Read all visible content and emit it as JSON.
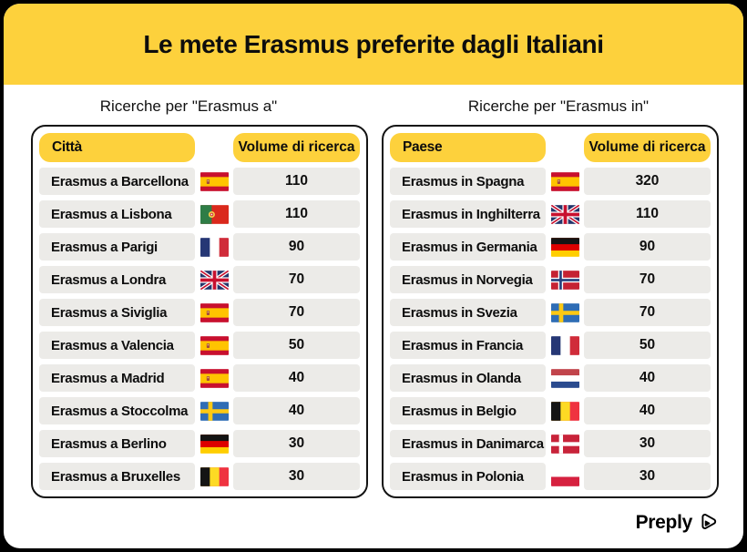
{
  "colors": {
    "yellow": "#FDD13C",
    "row_bg": "#ECEBE8",
    "text": "#0D0D0D",
    "card_border": "#131313",
    "background": "#000000",
    "surface": "#FFFFFF"
  },
  "header": {
    "title": "Le mete Erasmus preferite dagli Italiani"
  },
  "tables": [
    {
      "subtitle": "Ricerche per \"Erasmus a\"",
      "col1": "Città",
      "col2": "Volume di ricerca",
      "rows": [
        {
          "label": "Erasmus a Barcellona",
          "flag": "es",
          "value": "110"
        },
        {
          "label": "Erasmus a Lisbona",
          "flag": "pt",
          "value": "110"
        },
        {
          "label": "Erasmus a Parigi",
          "flag": "fr",
          "value": "90"
        },
        {
          "label": "Erasmus a Londra",
          "flag": "gb",
          "value": "70"
        },
        {
          "label": "Erasmus a Siviglia",
          "flag": "es",
          "value": "70"
        },
        {
          "label": "Erasmus a Valencia",
          "flag": "es",
          "value": "50"
        },
        {
          "label": "Erasmus a Madrid",
          "flag": "es",
          "value": "40"
        },
        {
          "label": "Erasmus a Stoccolma",
          "flag": "se",
          "value": "40"
        },
        {
          "label": "Erasmus a Berlino",
          "flag": "de",
          "value": "30"
        },
        {
          "label": "Erasmus a Bruxelles",
          "flag": "be",
          "value": "30"
        }
      ]
    },
    {
      "subtitle": "Ricerche per \"Erasmus in\"",
      "col1": "Paese",
      "col2": "Volume di ricerca",
      "rows": [
        {
          "label": "Erasmus in Spagna",
          "flag": "es",
          "value": "320"
        },
        {
          "label": "Erasmus in Inghilterra",
          "flag": "gb",
          "value": "110"
        },
        {
          "label": "Erasmus in Germania",
          "flag": "de",
          "value": "90"
        },
        {
          "label": "Erasmus in Norvegia",
          "flag": "no",
          "value": "70"
        },
        {
          "label": "Erasmus in Svezia",
          "flag": "se",
          "value": "70"
        },
        {
          "label": "Erasmus in Francia",
          "flag": "fr",
          "value": "50"
        },
        {
          "label": "Erasmus in Olanda",
          "flag": "nl",
          "value": "40"
        },
        {
          "label": "Erasmus in Belgio",
          "flag": "be",
          "value": "40"
        },
        {
          "label": "Erasmus in Danimarca",
          "flag": "dk",
          "value": "30"
        },
        {
          "label": "Erasmus in Polonia",
          "flag": "pl",
          "value": "30"
        }
      ]
    }
  ],
  "footer": {
    "brand": "Preply"
  },
  "chart_data": [
    {
      "type": "table",
      "title": "Ricerche per \"Erasmus a\"",
      "columns": [
        "Città",
        "Volume di ricerca"
      ],
      "categories": [
        "Erasmus a Barcellona",
        "Erasmus a Lisbona",
        "Erasmus a Parigi",
        "Erasmus a Londra",
        "Erasmus a Siviglia",
        "Erasmus a Valencia",
        "Erasmus a Madrid",
        "Erasmus a Stoccolma",
        "Erasmus a Berlino",
        "Erasmus a Bruxelles"
      ],
      "values": [
        110,
        110,
        90,
        70,
        70,
        50,
        40,
        40,
        30,
        30
      ],
      "flags": [
        "Spain",
        "Portugal",
        "France",
        "United Kingdom",
        "Spain",
        "Spain",
        "Spain",
        "Sweden",
        "Germany",
        "Belgium"
      ]
    },
    {
      "type": "table",
      "title": "Ricerche per \"Erasmus in\"",
      "columns": [
        "Paese",
        "Volume di ricerca"
      ],
      "categories": [
        "Erasmus in Spagna",
        "Erasmus in Inghilterra",
        "Erasmus in Germania",
        "Erasmus in Norvegia",
        "Erasmus in Svezia",
        "Erasmus in Francia",
        "Erasmus in Olanda",
        "Erasmus in Belgio",
        "Erasmus in Danimarca",
        "Erasmus in Polonia"
      ],
      "values": [
        320,
        110,
        90,
        70,
        70,
        50,
        40,
        40,
        30,
        30
      ],
      "flags": [
        "Spain",
        "United Kingdom",
        "Germany",
        "Norway",
        "Sweden",
        "France",
        "Netherlands",
        "Belgium",
        "Denmark",
        "Poland"
      ]
    }
  ]
}
